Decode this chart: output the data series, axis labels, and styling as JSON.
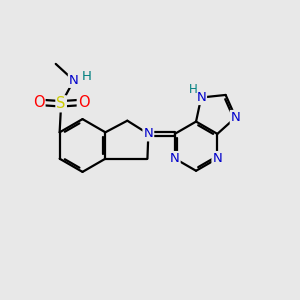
{
  "background_color": "#e8e8e8",
  "atom_colors": {
    "C": "#000000",
    "N": "#0000cc",
    "O": "#ff0000",
    "S": "#cccc00",
    "H_label": "#008080"
  },
  "bond_color": "#000000",
  "figsize": [
    3.0,
    3.0
  ],
  "dpi": 100
}
